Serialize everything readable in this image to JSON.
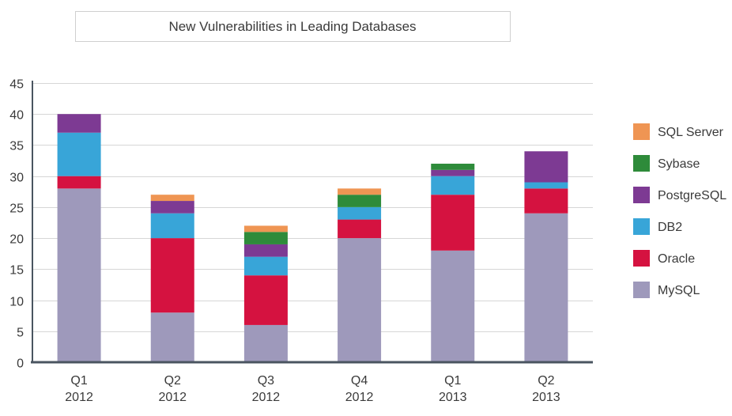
{
  "chart_data": {
    "type": "bar",
    "stacked": true,
    "title": "New Vulnerabilities in Leading Databases",
    "xlabel": "",
    "ylabel": "",
    "ylim": [
      0,
      45
    ],
    "yticks": [
      0,
      5,
      10,
      15,
      20,
      25,
      30,
      35,
      40,
      45
    ],
    "grid": true,
    "legend_position": "right",
    "categories": [
      {
        "line1": "Q1",
        "line2": "2012"
      },
      {
        "line1": "Q2",
        "line2": "2012"
      },
      {
        "line1": "Q3",
        "line2": "2012"
      },
      {
        "line1": "Q4",
        "line2": "2012"
      },
      {
        "line1": "Q1",
        "line2": "2013"
      },
      {
        "line1": "Q2",
        "line2": "2013"
      }
    ],
    "series": [
      {
        "name": "MySQL",
        "color": "#9e99bb",
        "values": [
          28,
          8,
          6,
          20,
          18,
          24
        ]
      },
      {
        "name": "Oracle",
        "color": "#d51240",
        "values": [
          2,
          12,
          8,
          3,
          9,
          4
        ]
      },
      {
        "name": "DB2",
        "color": "#38a5d8",
        "values": [
          7,
          4,
          3,
          2,
          3,
          1
        ]
      },
      {
        "name": "PostgreSQL",
        "color": "#7d3a93",
        "values": [
          3,
          2,
          2,
          0,
          1,
          5
        ]
      },
      {
        "name": "Sybase",
        "color": "#2e8b3a",
        "values": [
          0,
          0,
          2,
          2,
          1,
          0
        ]
      },
      {
        "name": "SQL Server",
        "color": "#ef9553",
        "values": [
          0,
          1,
          1,
          1,
          0,
          0
        ]
      }
    ],
    "legend_order": [
      "SQL Server",
      "Sybase",
      "PostgreSQL",
      "DB2",
      "Oracle",
      "MySQL"
    ]
  }
}
